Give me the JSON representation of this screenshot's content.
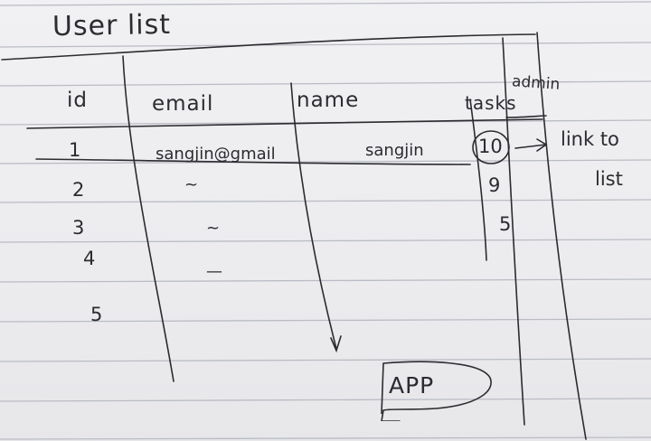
{
  "title": "User list",
  "headers": {
    "id": "id",
    "email": "email",
    "name": "name",
    "tasks": "tasks",
    "admin": "admin"
  },
  "rows": [
    {
      "id": "1",
      "email": "sangjin@gmail",
      "name": "sangjin",
      "tasks": "10"
    },
    {
      "id": "2",
      "email": "~",
      "name": "",
      "tasks": "9"
    },
    {
      "id": "3",
      "email": "~",
      "name": "",
      "tasks": "5"
    },
    {
      "id": "4",
      "email": "—",
      "name": "",
      "tasks": ""
    },
    {
      "id": "5",
      "email": "",
      "name": "",
      "tasks": ""
    }
  ],
  "annotation": {
    "line1": "link to",
    "line2": "list"
  },
  "app_button": {
    "label": "APP"
  },
  "colors": {
    "paper": "#eeeef0",
    "rule_line": "#b9bcc4",
    "ink": "#2b2b30"
  }
}
